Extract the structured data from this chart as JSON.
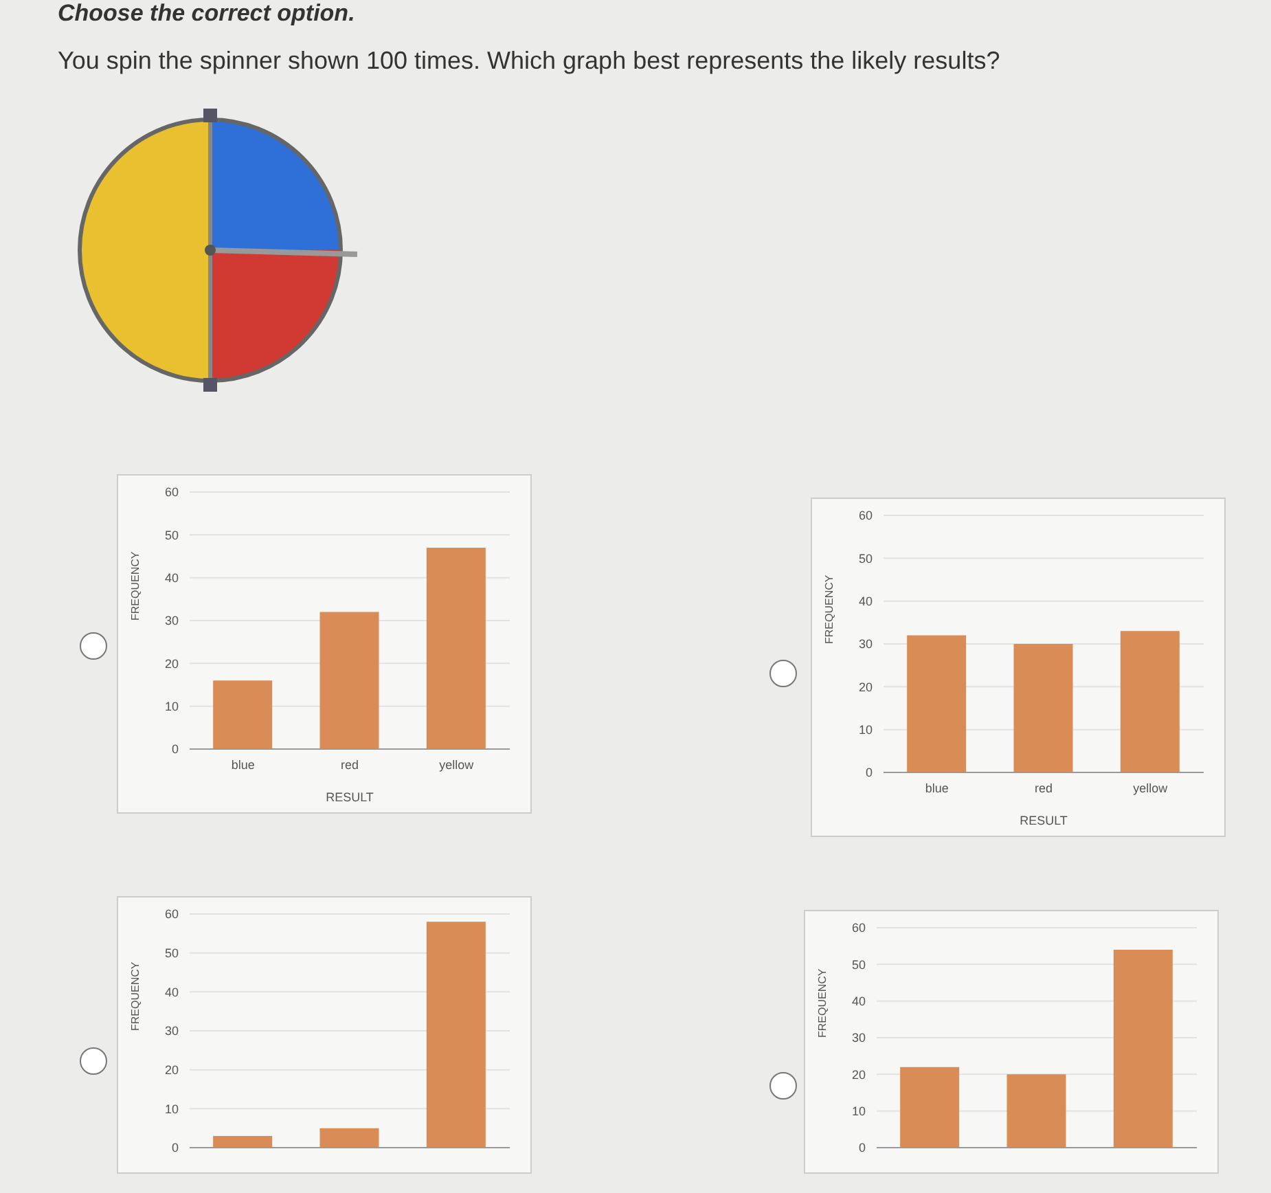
{
  "chart_data": [
    {
      "type": "other",
      "title": "Choose the correct option.",
      "subtitle": "You spin the spinner shown 100  times. Which graph best represents the likely results?"
    },
    {
      "type": "bar",
      "categories": [
        "blue",
        "red",
        "yellow"
      ],
      "values": [
        16,
        32,
        47
      ],
      "color": "#d98c56",
      "xlabel": "RESULT",
      "ylabel": "FREQUENCY",
      "ylim": [
        0,
        60
      ],
      "yticks": [
        0,
        10,
        20,
        30,
        40,
        50,
        60
      ],
      "grid": "y"
    },
    {
      "type": "bar",
      "categories": [
        "blue",
        "red",
        "yellow"
      ],
      "values": [
        32,
        30,
        33
      ],
      "color": "#d98c56",
      "xlabel": "RESULT",
      "ylabel": "FREQUENCY",
      "ylim": [
        0,
        60
      ],
      "yticks": [
        0,
        10,
        20,
        30,
        40,
        50,
        60
      ],
      "grid": "y"
    },
    {
      "type": "bar",
      "categories": [
        null,
        null,
        null
      ],
      "values": [
        3,
        5,
        58
      ],
      "color": "#d98c56",
      "ylabel": "FREQUENCY",
      "ylim": [
        0,
        60
      ],
      "yticks": [
        0,
        10,
        20,
        30,
        40,
        50,
        60
      ],
      "grid": "y",
      "tick_labels": "y"
    },
    {
      "type": "bar",
      "categories": [
        null,
        null,
        null
      ],
      "values": [
        22,
        20,
        54
      ],
      "color": "#d98c56",
      "ylabel": "FREQUENCY",
      "ylim": [
        0,
        60
      ],
      "yticks": [
        0,
        10,
        20,
        30,
        40,
        50,
        60
      ],
      "grid": "y",
      "tick_labels": "y"
    }
  ]
}
